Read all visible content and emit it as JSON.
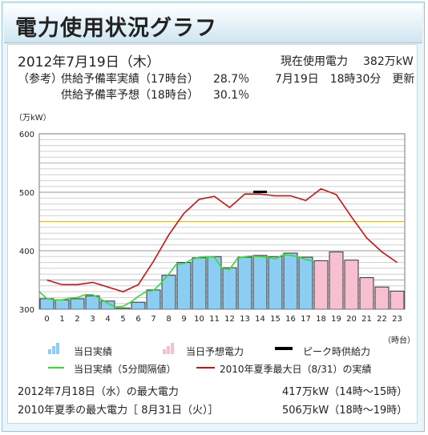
{
  "header": {
    "title": "電力使用状況グラフ"
  },
  "info": {
    "date": "2012年7月19日（木）",
    "reference_label": "（参考）",
    "actual_reserve_label": "供給予備率実績（17時台）",
    "actual_reserve_value": "28.7％",
    "forecast_reserve_label": "供給予備率予想（18時台）",
    "forecast_reserve_value": "30.1％",
    "current_usage_label": "現在使用電力",
    "current_usage_value": "382万kW",
    "updated": "7月19日　18時30分　更新"
  },
  "legend": {
    "actual": "当日実績",
    "forecast": "当日予想電力",
    "peak_supply": "ピーク時供給力",
    "actual_5min": "当日実績（5分間隔値）",
    "summer2010": "2010年夏季最大日（8/31）の実績"
  },
  "footer": {
    "prev_day_label": "2012年7月18日（水）の最大電力",
    "prev_day_value": "417万kW（14時～15時）",
    "summer_max_label": "2010年夏季の最大電力［ 8月31日（火）］",
    "summer_max_value": "506万kW（18時～19時）"
  },
  "colors": {
    "actual_bar": "#8ccdf4",
    "forecast_bar": "#f7bfd0",
    "actual_line": "#33dd33",
    "summer_line": "#cc1111",
    "peak_supply": "#000000"
  },
  "chart_data": {
    "type": "bar",
    "ylabel": "（万kW）",
    "xlabel": "（時台）",
    "ylim": [
      300,
      600
    ],
    "yticks": [
      300,
      400,
      500,
      600
    ],
    "categories": [
      "0",
      "1",
      "2",
      "3",
      "4",
      "5",
      "6",
      "7",
      "8",
      "9",
      "10",
      "11",
      "12",
      "13",
      "14",
      "15",
      "16",
      "17",
      "18",
      "19",
      "20",
      "21",
      "22",
      "23"
    ],
    "series": [
      {
        "name": "当日実績",
        "values": [
          318,
          316,
          318,
          323,
          314,
          302,
          312,
          333,
          358,
          380,
          388,
          390,
          371,
          389,
          392,
          390,
          396,
          389,
          null,
          null,
          null,
          null,
          null,
          null
        ]
      },
      {
        "name": "当日予想電力",
        "values": [
          null,
          null,
          null,
          null,
          null,
          null,
          null,
          null,
          null,
          null,
          null,
          null,
          null,
          null,
          null,
          null,
          null,
          null,
          383,
          398,
          384,
          354,
          338,
          331
        ]
      },
      {
        "name": "当日実績（5分間隔値）",
        "x": [
          0,
          0.5,
          1,
          1.5,
          2,
          2.5,
          3,
          3.5,
          4,
          4.5,
          5,
          5.5,
          6,
          6.5,
          7,
          7.5,
          8,
          8.5,
          9,
          9.5,
          10,
          10.5,
          11,
          11.5,
          12,
          12.5,
          13,
          13.5,
          14,
          14.5,
          15,
          15.5,
          16,
          16.5,
          17,
          17.5,
          18
        ],
        "values": [
          330,
          318,
          316,
          316,
          319,
          320,
          325,
          325,
          318,
          310,
          304,
          305,
          312,
          322,
          330,
          332,
          345,
          360,
          377,
          378,
          385,
          389,
          390,
          389,
          370,
          368,
          387,
          390,
          391,
          390,
          389,
          386,
          393,
          392,
          390,
          385,
          382
        ]
      },
      {
        "name": "2010年夏季最大日（8/31）の実績",
        "values": [
          350,
          342,
          342,
          346,
          338,
          330,
          342,
          382,
          427,
          464,
          488,
          493,
          474,
          497,
          497,
          494,
          494,
          486,
          506,
          496,
          458,
          422,
          398,
          380
        ]
      },
      {
        "name": "ピーク時供給力",
        "values": [
          null,
          null,
          null,
          null,
          null,
          null,
          null,
          null,
          null,
          null,
          null,
          null,
          null,
          null,
          500,
          null,
          null,
          null,
          null,
          null,
          null,
          null,
          null,
          null
        ]
      }
    ]
  }
}
